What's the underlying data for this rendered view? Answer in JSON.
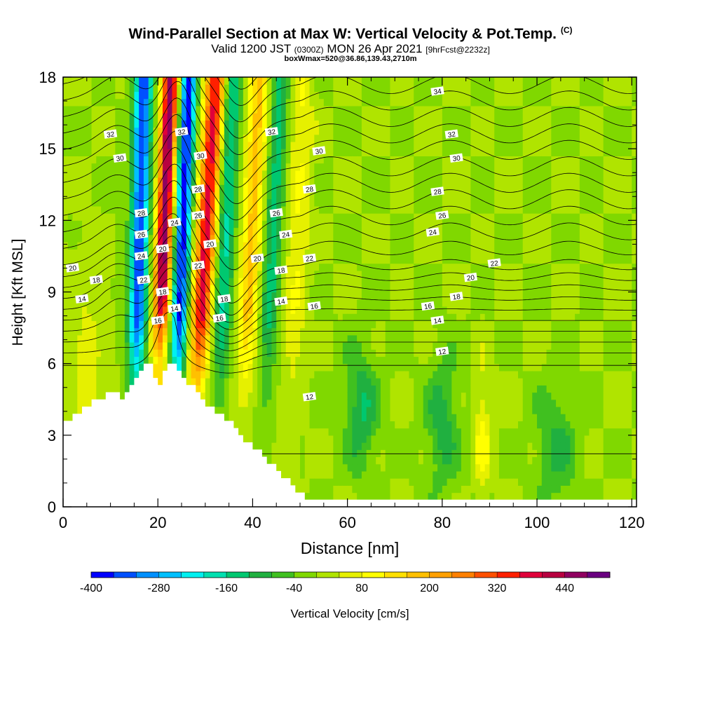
{
  "header": {
    "title_main": "Wind-Parallel Section at Max W: Vertical Velocity & Pot.Temp.",
    "title_c": "(C)",
    "sub_valid": "Valid 1200 JST",
    "sub_z": "(0300Z)",
    "sub_date": "MON 26 Apr 2021",
    "sub_fcst": "[9hrFcst@2232z]",
    "box_info": "boxWmax=520@36.86,139.43,2710m"
  },
  "chart_data": {
    "type": "heatmap",
    "xlabel": "Distance [nm]",
    "ylabel": "Height [Kft MSL]",
    "xlim": [
      0,
      121
    ],
    "ylim": [
      0,
      18
    ],
    "x_ticks": [
      0,
      20,
      40,
      60,
      80,
      100,
      120
    ],
    "y_ticks": [
      0,
      3,
      6,
      9,
      12,
      15,
      18
    ],
    "colorbar": {
      "label": "Vertical Velocity [cm/s]",
      "range": [
        -400,
        520
      ],
      "tick_labels": [
        "-400",
        "-280",
        "-160",
        "-40",
        "80",
        "200",
        "320",
        "440"
      ],
      "tick_values": [
        -400,
        -280,
        -160,
        -40,
        80,
        200,
        320,
        440
      ],
      "colors": [
        "#0000ff",
        "#0050ff",
        "#0090ff",
        "#00c0ff",
        "#00f0f0",
        "#00e0b0",
        "#00c870",
        "#20b040",
        "#40c020",
        "#80d800",
        "#b0e400",
        "#e6f000",
        "#ffff00",
        "#ffe000",
        "#ffc000",
        "#ffa000",
        "#ff8000",
        "#ff5000",
        "#ff2000",
        "#e0003a",
        "#b80040",
        "#900060",
        "#6a0080"
      ]
    },
    "terrain": [
      [
        0,
        3.6
      ],
      [
        2,
        3.8
      ],
      [
        4,
        4.1
      ],
      [
        6,
        4.4
      ],
      [
        8,
        4.6
      ],
      [
        10,
        4.8
      ],
      [
        12,
        4.5
      ],
      [
        14,
        5.0
      ],
      [
        16,
        5.6
      ],
      [
        17,
        6.1
      ],
      [
        18,
        6.1
      ],
      [
        19,
        5.4
      ],
      [
        20,
        5.2
      ],
      [
        21,
        5.8
      ],
      [
        22,
        6.1
      ],
      [
        23,
        6.0
      ],
      [
        24,
        5.6
      ],
      [
        26,
        5.2
      ],
      [
        28,
        4.8
      ],
      [
        30,
        4.3
      ],
      [
        32,
        3.8
      ],
      [
        34,
        3.7
      ],
      [
        36,
        3.3
      ],
      [
        38,
        2.8
      ],
      [
        40,
        2.5
      ],
      [
        42,
        2.1
      ],
      [
        44,
        1.7
      ],
      [
        46,
        1.3
      ],
      [
        48,
        0.9
      ],
      [
        50,
        0.5
      ],
      [
        52,
        0.35
      ],
      [
        56,
        0.35
      ],
      [
        60,
        0.35
      ],
      [
        120,
        0.35
      ]
    ],
    "series": [
      {
        "name": "12",
        "label_positions": [
          [
            52,
            4.6
          ],
          [
            80,
            6.5
          ]
        ]
      },
      {
        "name": "14",
        "label_positions": [
          [
            4,
            8.7
          ],
          [
            23.5,
            8.3
          ],
          [
            46,
            8.6
          ],
          [
            79,
            7.8
          ]
        ]
      },
      {
        "name": "16",
        "label_positions": [
          [
            20,
            7.8
          ],
          [
            33,
            7.9
          ],
          [
            53,
            8.4
          ],
          [
            77,
            8.4
          ]
        ]
      },
      {
        "name": "18",
        "label_positions": [
          [
            7,
            9.5
          ],
          [
            21,
            9.0
          ],
          [
            34,
            8.7
          ],
          [
            46,
            9.9
          ],
          [
            83,
            8.8
          ]
        ]
      },
      {
        "name": "20",
        "label_positions": [
          [
            2,
            10.0
          ],
          [
            21,
            10.8
          ],
          [
            31,
            11.0
          ],
          [
            41,
            10.4
          ],
          [
            86,
            9.6
          ]
        ]
      },
      {
        "name": "22",
        "label_positions": [
          [
            17,
            9.5
          ],
          [
            28.5,
            10.1
          ],
          [
            52,
            10.4
          ],
          [
            91,
            10.2
          ]
        ]
      },
      {
        "name": "24",
        "label_positions": [
          [
            16.5,
            10.5
          ],
          [
            23.5,
            11.9
          ],
          [
            47,
            11.4
          ],
          [
            78,
            11.5
          ]
        ]
      },
      {
        "name": "26",
        "label_positions": [
          [
            16.5,
            11.4
          ],
          [
            28.5,
            12.2
          ],
          [
            45,
            12.3
          ],
          [
            80,
            12.2
          ]
        ]
      },
      {
        "name": "28",
        "label_positions": [
          [
            16.5,
            12.3
          ],
          [
            28.5,
            13.3
          ],
          [
            52,
            13.3
          ],
          [
            79,
            13.2
          ]
        ]
      },
      {
        "name": "30",
        "label_positions": [
          [
            12,
            14.6
          ],
          [
            29,
            14.7
          ],
          [
            54,
            14.9
          ],
          [
            83,
            14.6
          ]
        ]
      },
      {
        "name": "32",
        "label_positions": [
          [
            10,
            15.6
          ],
          [
            25,
            15.7
          ],
          [
            44,
            15.7
          ],
          [
            82,
            15.6
          ]
        ]
      },
      {
        "name": "34",
        "label_positions": [
          [
            79,
            17.4
          ]
        ]
      }
    ]
  }
}
